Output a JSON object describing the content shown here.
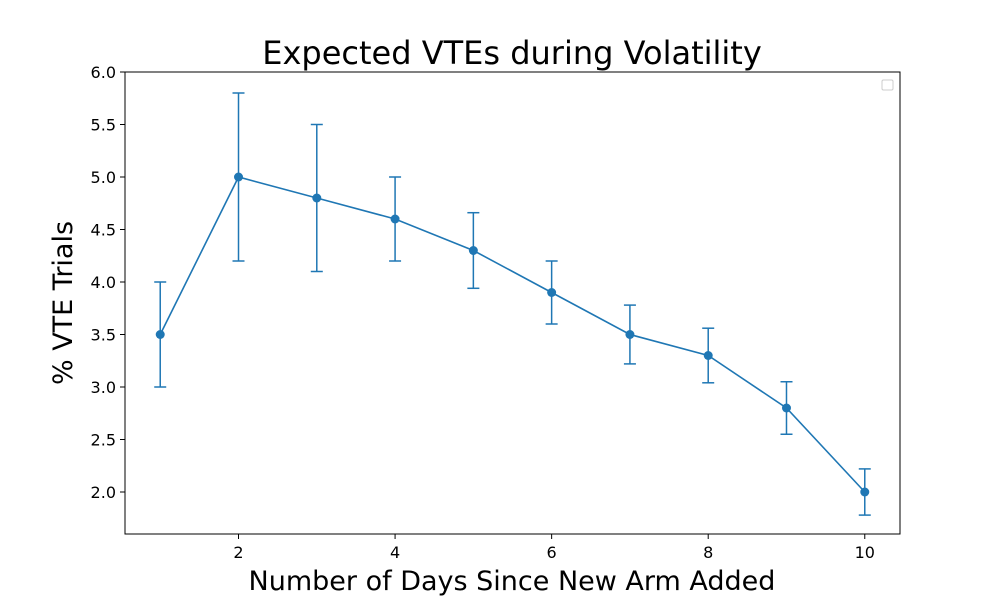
{
  "chart_data": {
    "type": "line",
    "title": "Expected VTEs during Volatility",
    "xlabel": "Number of Days Since New Arm Added",
    "ylabel": "% VTE Trials",
    "xlim": [
      0.55,
      10.45
    ],
    "ylim": [
      1.6,
      6.0
    ],
    "xticks": [
      2,
      4,
      6,
      8,
      10
    ],
    "yticks": [
      2.0,
      2.5,
      3.0,
      3.5,
      4.0,
      4.5,
      5.0,
      5.5,
      6.0
    ],
    "xtick_labels": [
      "2",
      "4",
      "6",
      "8",
      "10"
    ],
    "ytick_labels": [
      "2.0",
      "2.5",
      "3.0",
      "3.5",
      "4.0",
      "4.5",
      "5.0",
      "5.5",
      "6.0"
    ],
    "grid": false,
    "legend": {
      "placement": "upper right",
      "entries": []
    },
    "color": "#1f77b4",
    "series": [
      {
        "x": [
          1,
          2,
          3,
          4,
          5,
          6,
          7,
          8,
          9,
          10
        ],
        "y": [
          3.5,
          5.0,
          4.8,
          4.6,
          4.3,
          3.9,
          3.5,
          3.3,
          2.8,
          2.0
        ],
        "error": [
          0.5,
          0.8,
          0.7,
          0.4,
          0.36,
          0.3,
          0.28,
          0.26,
          0.25,
          0.22
        ]
      }
    ]
  }
}
